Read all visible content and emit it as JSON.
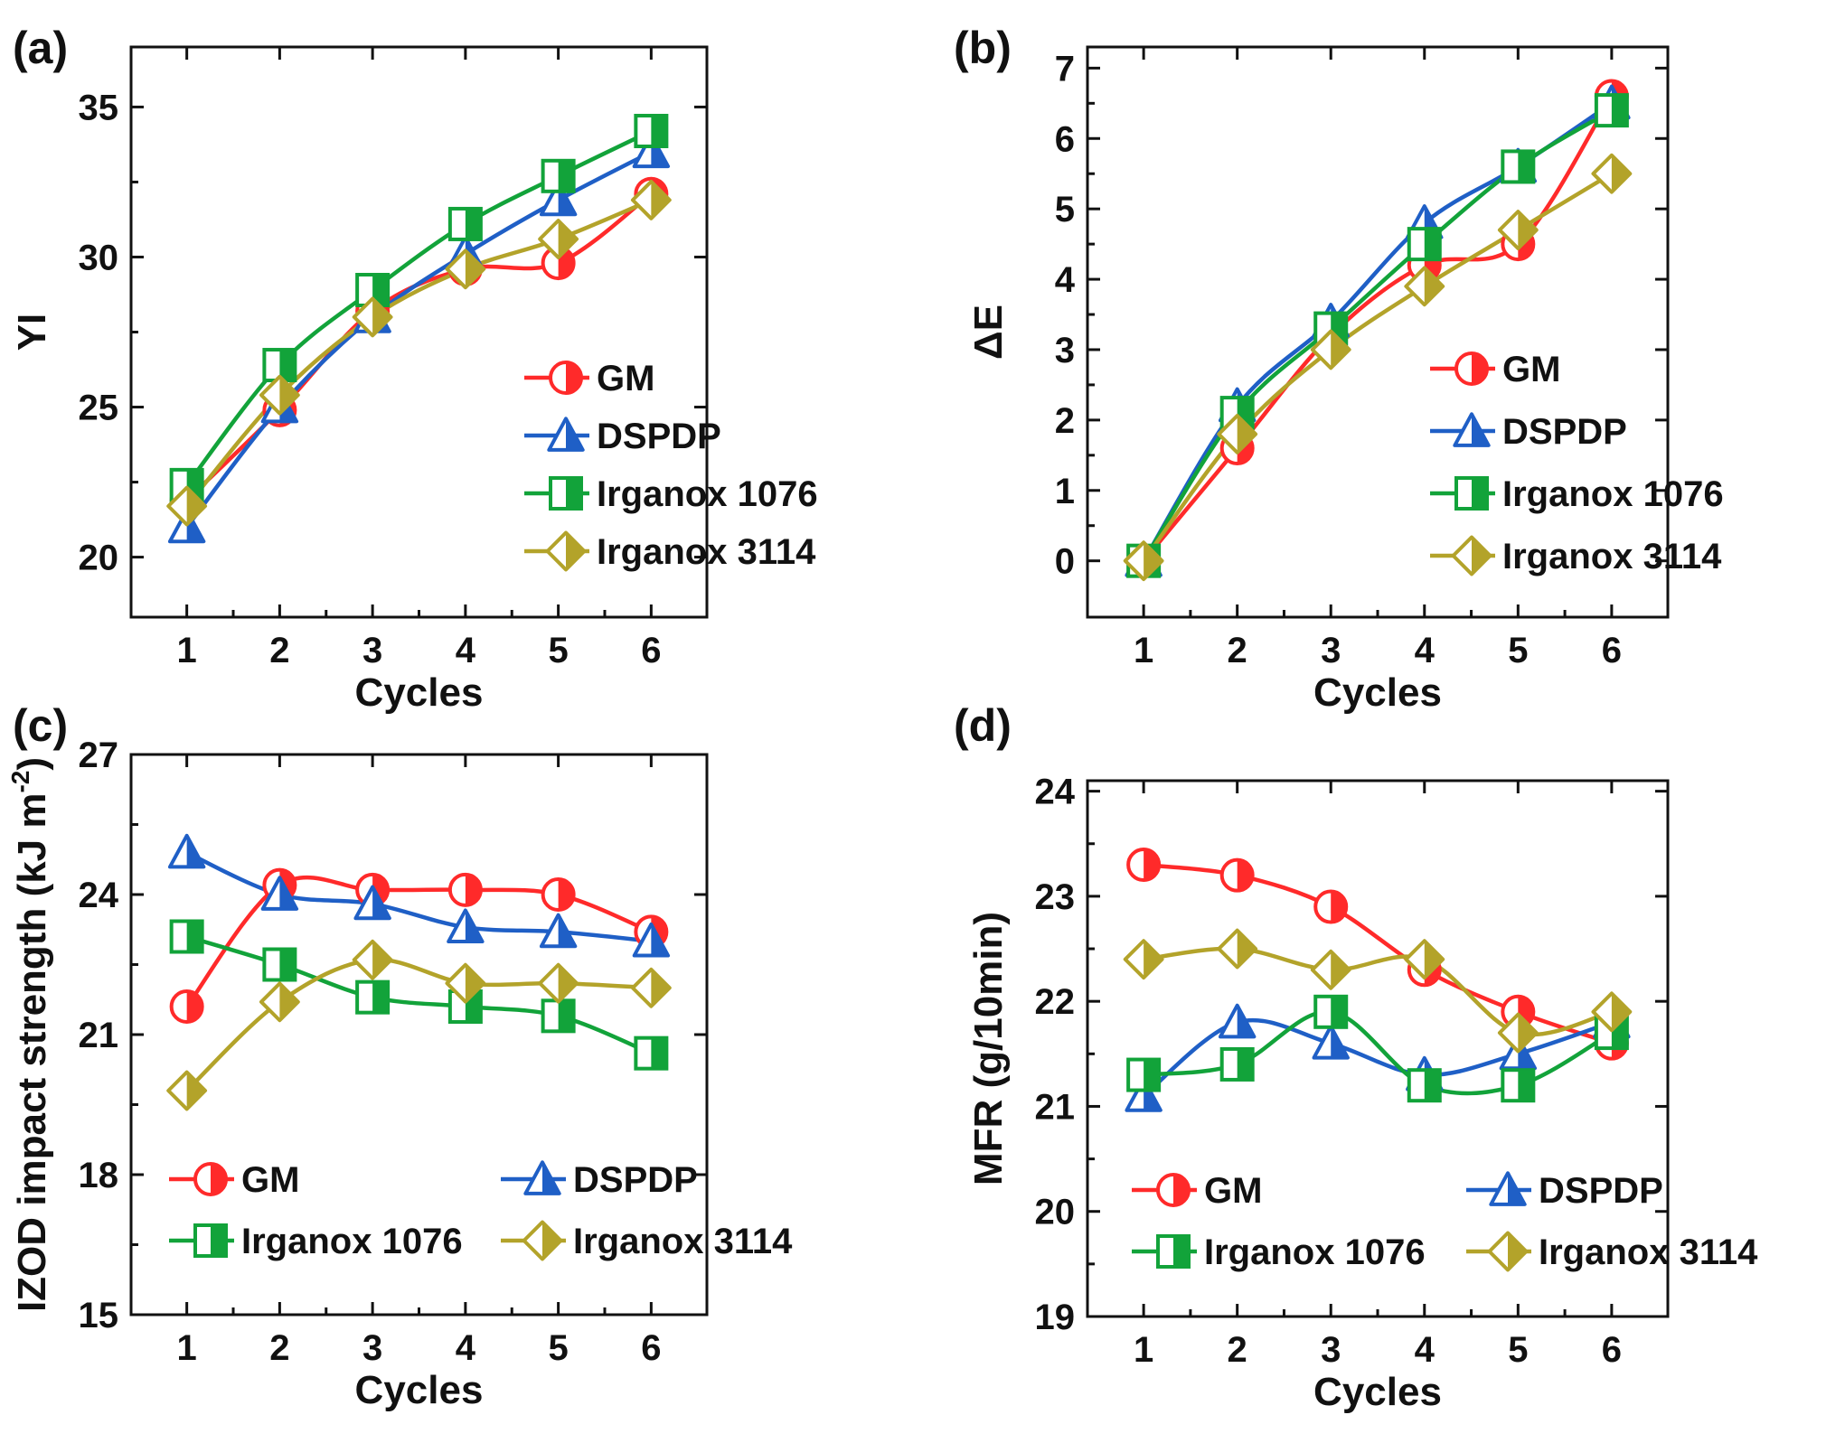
{
  "colors": {
    "GM": "#ff2a2a",
    "DSPDP": "#1f5fc6",
    "Irganox 1076": "#12a33a",
    "Irganox 3114": "#b3a32a"
  },
  "chart_data": [
    {
      "type": "line",
      "panel": "(a)",
      "xlabel": "Cycles",
      "ylabel": "YI",
      "x": [
        1,
        2,
        3,
        4,
        5,
        6
      ],
      "xticks": [
        "1",
        "2",
        "3",
        "4",
        "5",
        "6"
      ],
      "ylim": [
        18,
        37
      ],
      "yticks": [
        "20",
        "25",
        "30",
        "35"
      ],
      "legend_layout": "column",
      "legend_position": "bottom-right",
      "series": [
        {
          "name": "GM",
          "marker": "circle",
          "values": [
            21.9,
            24.9,
            28.2,
            29.6,
            29.8,
            32.1
          ]
        },
        {
          "name": "DSPDP",
          "marker": "triangle",
          "values": [
            21.0,
            25.0,
            28.0,
            30.1,
            31.9,
            33.5
          ]
        },
        {
          "name": "Irganox 1076",
          "marker": "square",
          "values": [
            22.4,
            26.4,
            28.9,
            31.1,
            32.7,
            34.2
          ]
        },
        {
          "name": "Irganox 3114",
          "marker": "diamond",
          "values": [
            21.7,
            25.4,
            28.0,
            29.6,
            30.6,
            31.9
          ]
        }
      ]
    },
    {
      "type": "line",
      "panel": "(b)",
      "xlabel": "Cycles",
      "ylabel": "ΔE",
      "x": [
        1,
        2,
        3,
        4,
        5,
        6
      ],
      "xticks": [
        "1",
        "2",
        "3",
        "4",
        "5",
        "6"
      ],
      "ylim": [
        -0.8,
        7.3
      ],
      "yticks": [
        "0",
        "1",
        "2",
        "3",
        "4",
        "5",
        "6",
        "7"
      ],
      "legend_layout": "column",
      "legend_position": "bottom-right",
      "series": [
        {
          "name": "GM",
          "marker": "circle",
          "values": [
            0,
            1.6,
            3.2,
            4.2,
            4.5,
            6.6
          ]
        },
        {
          "name": "DSPDP",
          "marker": "triangle",
          "values": [
            0,
            2.2,
            3.4,
            4.8,
            5.6,
            6.5
          ]
        },
        {
          "name": "Irganox 1076",
          "marker": "square",
          "values": [
            0,
            2.1,
            3.3,
            4.5,
            5.6,
            6.4
          ]
        },
        {
          "name": "Irganox 3114",
          "marker": "diamond",
          "values": [
            0,
            1.8,
            3.0,
            3.9,
            4.7,
            5.5
          ]
        }
      ]
    },
    {
      "type": "line",
      "panel": "(c)",
      "xlabel": "Cycles",
      "ylabel": "IZOD impact strength (kJ m",
      "ylabel_sup": "-2",
      "ylabel_end": ")",
      "x": [
        1,
        2,
        3,
        4,
        5,
        6
      ],
      "xticks": [
        "1",
        "2",
        "3",
        "4",
        "5",
        "6"
      ],
      "ylim": [
        15,
        27
      ],
      "yticks": [
        "15",
        "18",
        "21",
        "24",
        "27"
      ],
      "legend_layout": "grid",
      "legend_position": "bottom",
      "series": [
        {
          "name": "GM",
          "marker": "circle",
          "values": [
            21.6,
            24.2,
            24.1,
            24.1,
            24.0,
            23.2
          ]
        },
        {
          "name": "DSPDP",
          "marker": "triangle",
          "values": [
            24.9,
            24.0,
            23.8,
            23.3,
            23.2,
            23.0
          ]
        },
        {
          "name": "Irganox 1076",
          "marker": "square",
          "values": [
            23.1,
            22.5,
            21.8,
            21.6,
            21.4,
            20.6
          ]
        },
        {
          "name": "Irganox 3114",
          "marker": "diamond",
          "values": [
            19.8,
            21.7,
            22.6,
            22.1,
            22.1,
            22.0
          ]
        }
      ]
    },
    {
      "type": "line",
      "panel": "(d)",
      "xlabel": "Cycles",
      "ylabel": "MFR (g/10min)",
      "x": [
        1,
        2,
        3,
        4,
        5,
        6
      ],
      "xticks": [
        "1",
        "2",
        "3",
        "4",
        "5",
        "6"
      ],
      "ylim": [
        19,
        24.1
      ],
      "yticks": [
        "19",
        "20",
        "21",
        "22",
        "23",
        "24"
      ],
      "legend_layout": "grid",
      "legend_position": "bottom",
      "series": [
        {
          "name": "GM",
          "marker": "circle",
          "values": [
            23.3,
            23.2,
            22.9,
            22.3,
            21.9,
            21.6
          ]
        },
        {
          "name": "DSPDP",
          "marker": "triangle",
          "values": [
            21.1,
            21.8,
            21.6,
            21.3,
            21.5,
            21.8
          ]
        },
        {
          "name": "Irganox 1076",
          "marker": "square",
          "values": [
            21.3,
            21.4,
            21.9,
            21.2,
            21.2,
            21.7
          ]
        },
        {
          "name": "Irganox 3114",
          "marker": "diamond",
          "values": [
            22.4,
            22.5,
            22.3,
            22.4,
            21.7,
            21.9
          ]
        }
      ]
    }
  ]
}
